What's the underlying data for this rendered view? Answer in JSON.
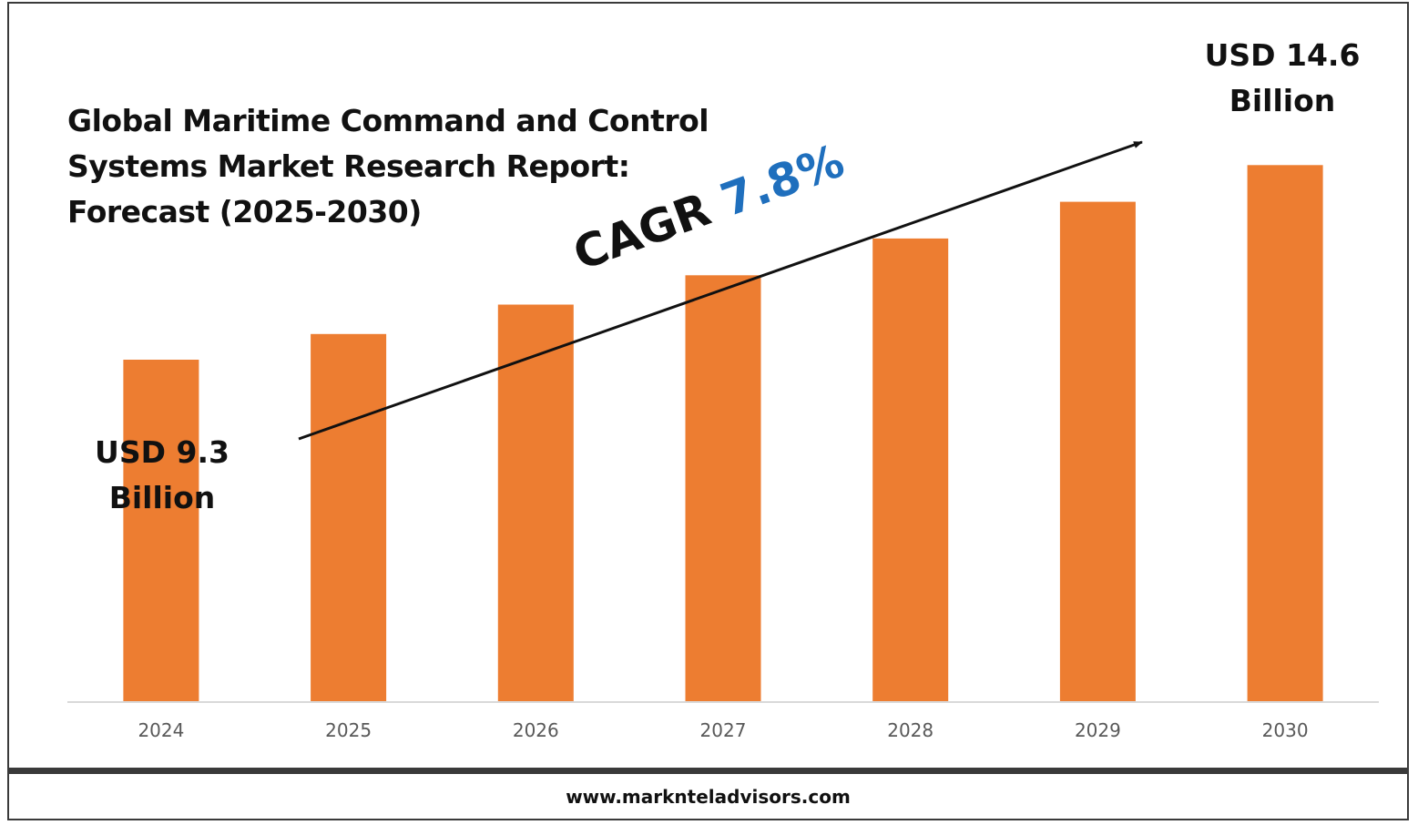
{
  "chart_data": {
    "type": "bar",
    "title": "Global Maritime Command and Control Systems Market Research Report: Forecast (2025-2030)",
    "categories": [
      "2024",
      "2025",
      "2026",
      "2027",
      "2028",
      "2029",
      "2030"
    ],
    "values": [
      9.3,
      10.0,
      10.8,
      11.6,
      12.6,
      13.6,
      14.6
    ],
    "value_unit": "USD Billion",
    "ylim": [
      0,
      15.5
    ],
    "grid": false,
    "legend": "none",
    "bar_color": "#ed7d31",
    "annotations": {
      "start_label": "USD 9.3 Billion",
      "end_label": "USD 14.6 Billion",
      "cagr_prefix": "CAGR ",
      "cagr_value": "7.8%"
    }
  },
  "colors": {
    "bar": "#ed7d31",
    "cagr_accent": "#1f6fbd",
    "axis": "#d9d9d9",
    "tick_text": "#595959"
  },
  "footer": {
    "website": "www.marknteladvisors.com"
  }
}
